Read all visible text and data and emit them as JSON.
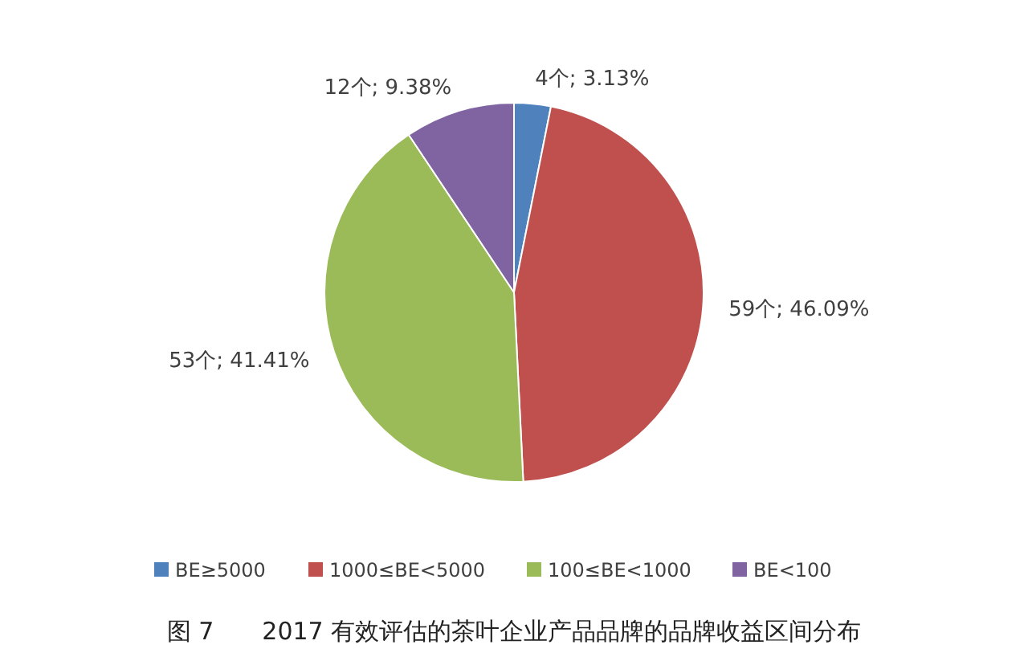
{
  "chart_data": {
    "type": "pie",
    "title": "图 7　　2017 有效评估的茶叶企业产品品牌的品牌收益区间分布",
    "categories": [
      "BE≥5000",
      "1000≤BE<5000",
      "100≤BE<1000",
      "BE<100"
    ],
    "values": [
      4,
      59,
      53,
      12
    ],
    "colors": [
      "#4f81bd",
      "#c0504d",
      "#9bbb59",
      "#8064a2"
    ],
    "value_labels": [
      "4个; 3.13%",
      "59个; 46.09%",
      "53个; 41.41%",
      "12个; 9.38%"
    ],
    "legend": "bottom"
  }
}
